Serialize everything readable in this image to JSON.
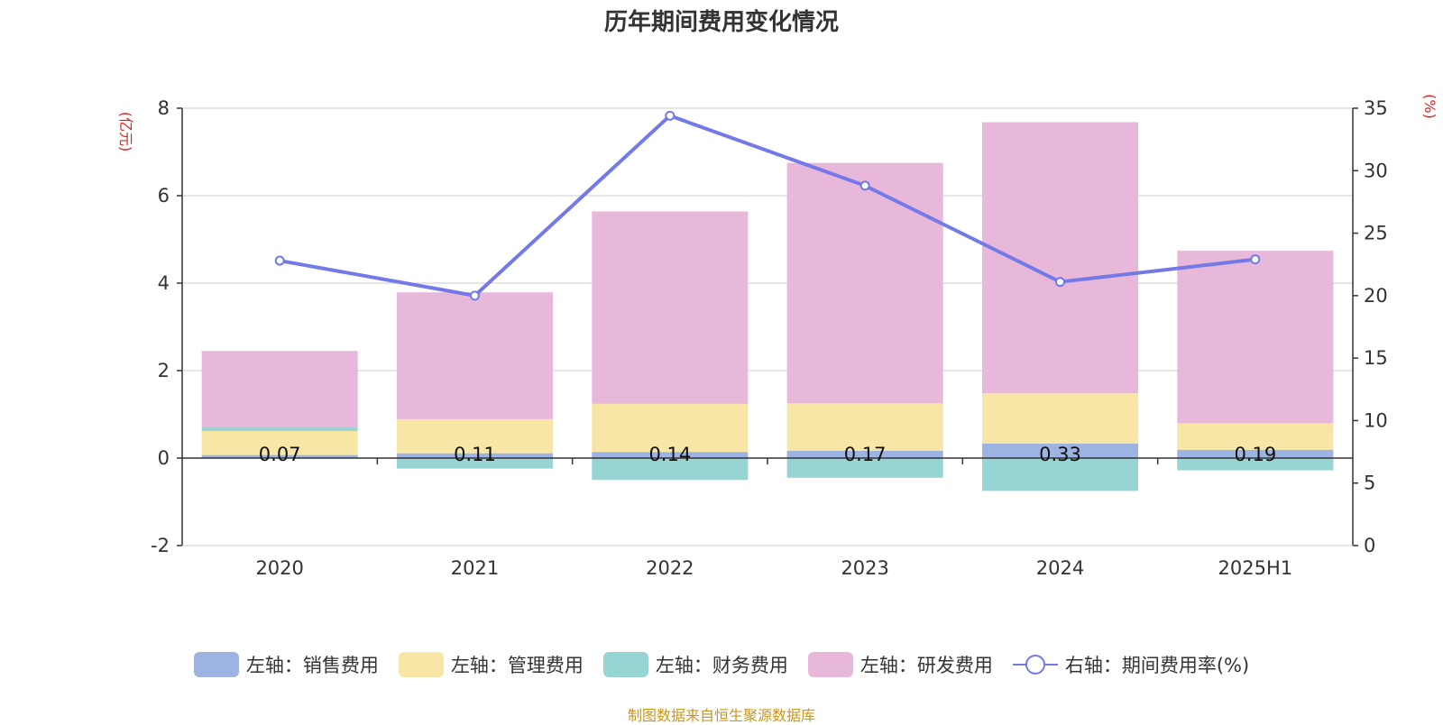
{
  "title": "历年期间费用变化情况",
  "source": "制图数据来自恒生聚源数据库",
  "chart_data": {
    "type": "bar",
    "stacked": true,
    "categories": [
      "2020",
      "2021",
      "2022",
      "2023",
      "2024",
      "2025H1"
    ],
    "left_axis": {
      "unit": "(亿元)",
      "ylim": [
        -2,
        8
      ],
      "ticks": [
        "-2",
        "0",
        "2",
        "4",
        "6",
        "8"
      ]
    },
    "right_axis": {
      "unit": "(%)",
      "ylim": [
        0,
        35
      ],
      "ticks": [
        "0",
        "5",
        "10",
        "15",
        "20",
        "25",
        "30",
        "35"
      ]
    },
    "series": [
      {
        "name": "左轴：销售费用",
        "color": "#9db3e2",
        "values": [
          0.07,
          0.11,
          0.14,
          0.17,
          0.33,
          0.19
        ]
      },
      {
        "name": "左轴：管理费用",
        "color": "#f8e6a6",
        "values": [
          0.55,
          0.78,
          1.1,
          1.08,
          1.15,
          0.6
        ]
      },
      {
        "name": "左轴：财务费用",
        "color": "#97d4d4",
        "values": [
          0.08,
          -0.24,
          -0.5,
          -0.45,
          -0.75,
          -0.28
        ]
      },
      {
        "name": "左轴：研发费用",
        "color": "#e8b8da",
        "values": [
          1.75,
          2.9,
          4.4,
          5.5,
          6.2,
          3.95
        ]
      }
    ],
    "line": {
      "name": "右轴：期间费用率(%)",
      "color": "#7479e8",
      "values": [
        22.8,
        20.0,
        34.4,
        28.8,
        21.1,
        22.9
      ]
    },
    "data_labels": [
      "0.07",
      "0.11",
      "0.14",
      "0.17",
      "0.33",
      "0.19"
    ],
    "grid": true,
    "legend_position": "bottom"
  }
}
